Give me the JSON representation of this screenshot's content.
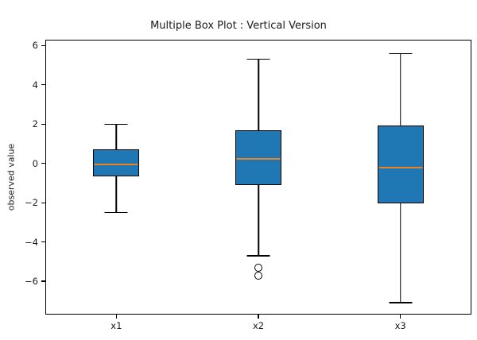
{
  "chart_data": {
    "type": "boxplot",
    "orientation": "vertical",
    "title": "Multiple Box Plot : Vertical Version",
    "xlabel": "",
    "ylabel": "observed value",
    "categories": [
      "x1",
      "x2",
      "x3"
    ],
    "y_ticks": [
      6,
      4,
      2,
      0,
      -2,
      -4,
      -6
    ],
    "ylim": [
      -7.7,
      6.3
    ],
    "grid": false,
    "legend": "none",
    "series": [
      {
        "name": "x1",
        "whisker_low": -2.5,
        "q1": -0.65,
        "median": -0.05,
        "q3": 0.7,
        "whisker_high": 2.0,
        "outliers": []
      },
      {
        "name": "x2",
        "whisker_low": -4.7,
        "q1": -1.1,
        "median": 0.25,
        "q3": 1.7,
        "whisker_high": 5.3,
        "outliers": [
          -5.3,
          -5.7
        ]
      },
      {
        "name": "x3",
        "whisker_low": -7.1,
        "q1": -2.05,
        "median": -0.2,
        "q3": 1.95,
        "whisker_high": 5.6,
        "outliers": []
      }
    ],
    "colors": {
      "box_fill": "#1f77b4",
      "box_edge": "#000000",
      "median": "#ee8122",
      "whisker": "#000000",
      "outlier_edge": "#000000",
      "background": "#ffffff"
    }
  }
}
